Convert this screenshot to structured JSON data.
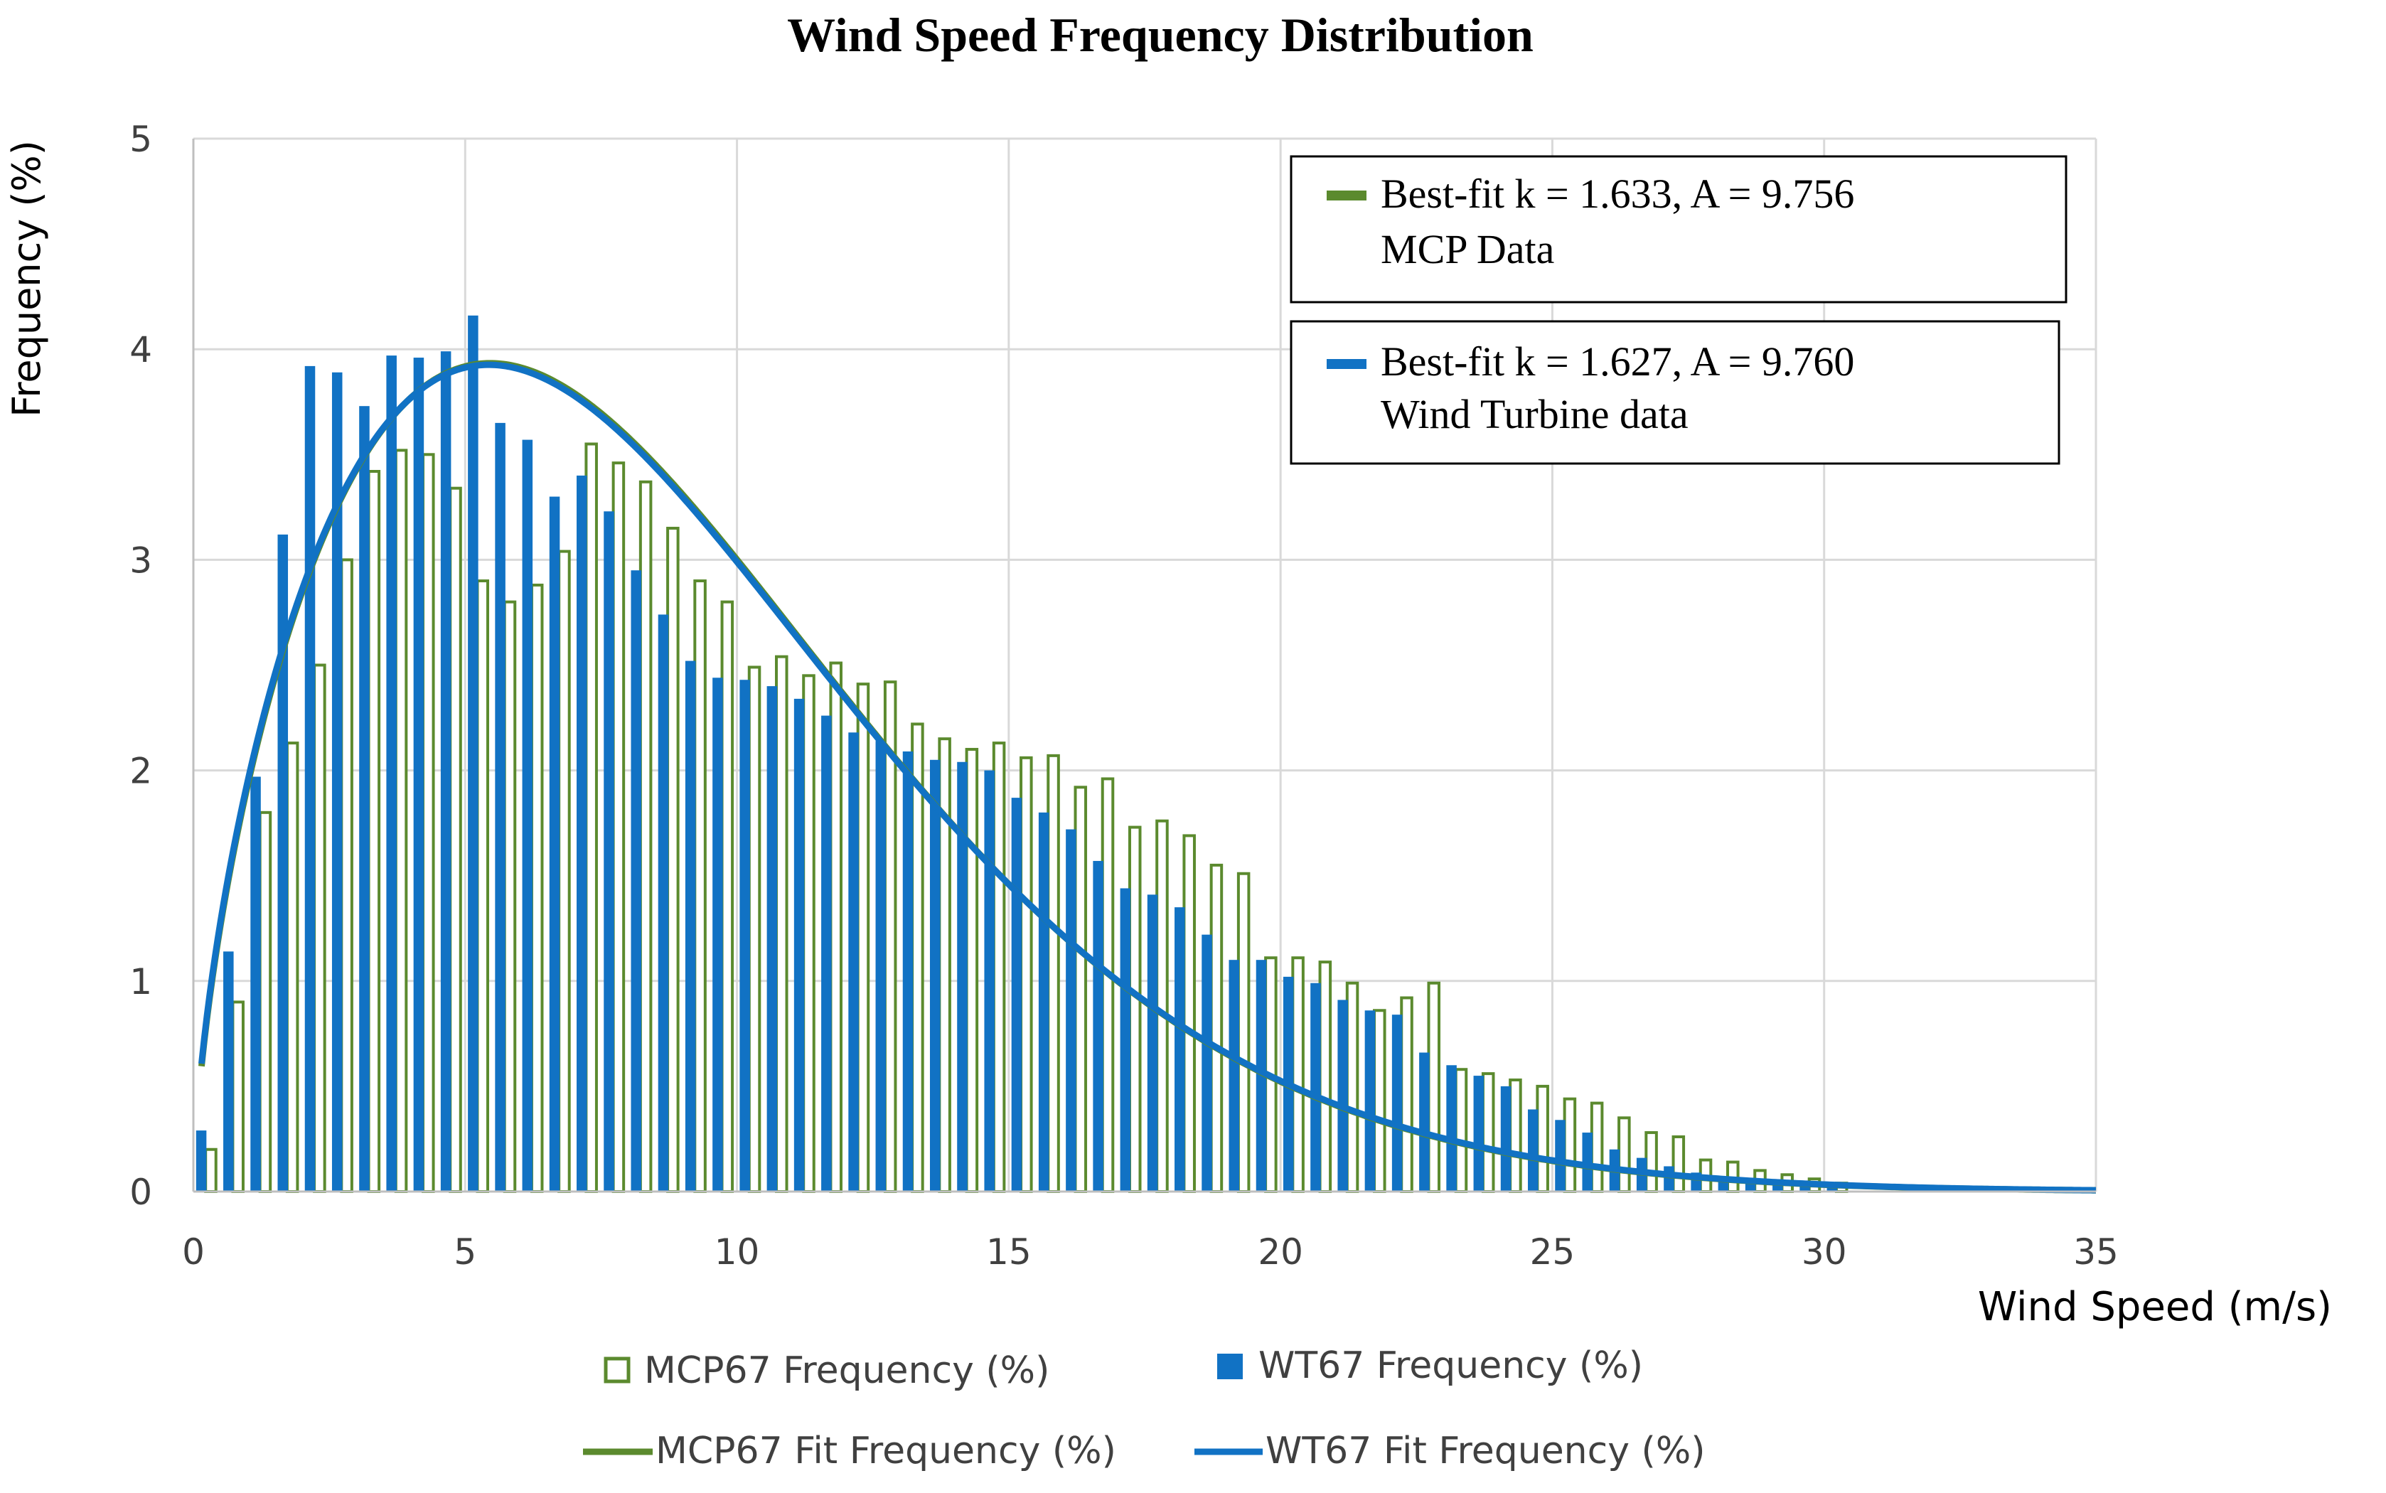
{
  "chart_data": {
    "type": "bar",
    "title": "Wind Speed Frequency Distribution",
    "xlabel": "Wind Speed  (m/s)",
    "ylabel": "Frequency  (%)",
    "xlim": [
      0,
      35
    ],
    "ylim": [
      0,
      5
    ],
    "x_ticks": [
      0,
      5,
      10,
      15,
      20,
      25,
      30,
      35
    ],
    "y_ticks": [
      0,
      1,
      2,
      3,
      4,
      5
    ],
    "grid": true,
    "bin_width": 0.5,
    "colors": {
      "mcp": "#5b8a2e",
      "wt": "#1172c4",
      "grid": "#d9d9d9",
      "axis": "#bfbfbf",
      "text": "#404040"
    },
    "series": [
      {
        "name": "MCP67 Frequency (%)",
        "style": "hollow-bar",
        "x": [
          0.25,
          0.75,
          1.25,
          1.75,
          2.25,
          2.75,
          3.25,
          3.75,
          4.25,
          4.75,
          5.25,
          5.75,
          6.25,
          6.75,
          7.25,
          7.75,
          8.25,
          8.75,
          9.25,
          9.75,
          10.25,
          10.75,
          11.25,
          11.75,
          12.25,
          12.75,
          13.25,
          13.75,
          14.25,
          14.75,
          15.25,
          15.75,
          16.25,
          16.75,
          17.25,
          17.75,
          18.25,
          18.75,
          19.25,
          19.75,
          20.25,
          20.75,
          21.25,
          21.75,
          22.25,
          22.75,
          23.25,
          23.75,
          24.25,
          24.75,
          25.25,
          25.75,
          26.25,
          26.75,
          27.25,
          27.75,
          28.25,
          28.75,
          29.25,
          29.75,
          30.25
        ],
        "values": [
          0.2,
          0.9,
          1.8,
          2.13,
          2.5,
          3.0,
          3.42,
          3.52,
          3.5,
          3.34,
          2.9,
          2.8,
          2.88,
          3.04,
          3.55,
          3.46,
          3.37,
          3.15,
          2.9,
          2.8,
          2.49,
          2.54,
          2.45,
          2.51,
          2.41,
          2.42,
          2.22,
          2.15,
          2.1,
          2.13,
          2.06,
          2.07,
          1.92,
          1.96,
          1.73,
          1.76,
          1.69,
          1.55,
          1.51,
          1.11,
          1.11,
          1.09,
          0.99,
          0.86,
          0.92,
          0.99,
          0.58,
          0.56,
          0.53,
          0.5,
          0.44,
          0.42,
          0.35,
          0.28,
          0.26,
          0.15,
          0.14,
          0.1,
          0.08,
          0.06,
          0.04
        ]
      },
      {
        "name": "WT67 Frequency (%)",
        "style": "solid-bar",
        "x": [
          0.25,
          0.75,
          1.25,
          1.75,
          2.25,
          2.75,
          3.25,
          3.75,
          4.25,
          4.75,
          5.25,
          5.75,
          6.25,
          6.75,
          7.25,
          7.75,
          8.25,
          8.75,
          9.25,
          9.75,
          10.25,
          10.75,
          11.25,
          11.75,
          12.25,
          12.75,
          13.25,
          13.75,
          14.25,
          14.75,
          15.25,
          15.75,
          16.25,
          16.75,
          17.25,
          17.75,
          18.25,
          18.75,
          19.25,
          19.75,
          20.25,
          20.75,
          21.25,
          21.75,
          22.25,
          22.75,
          23.25,
          23.75,
          24.25,
          24.75,
          25.25,
          25.75,
          26.25,
          26.75,
          27.25,
          27.75,
          28.25,
          28.75,
          29.25,
          29.75,
          30.25
        ],
        "values": [
          0.29,
          1.14,
          1.97,
          3.12,
          3.92,
          3.89,
          3.73,
          3.97,
          3.96,
          3.99,
          4.16,
          3.65,
          3.57,
          3.3,
          3.4,
          3.23,
          2.95,
          2.74,
          2.52,
          2.44,
          2.43,
          2.4,
          2.34,
          2.26,
          2.18,
          2.14,
          2.09,
          2.05,
          2.04,
          2.0,
          1.87,
          1.8,
          1.72,
          1.57,
          1.44,
          1.41,
          1.35,
          1.22,
          1.1,
          1.1,
          1.02,
          0.99,
          0.91,
          0.86,
          0.84,
          0.66,
          0.6,
          0.55,
          0.5,
          0.39,
          0.34,
          0.28,
          0.2,
          0.16,
          0.12,
          0.09,
          0.07,
          0.05,
          0.04,
          0.03,
          0.02
        ]
      },
      {
        "name": "MCP67 Fit Frequency (%)",
        "style": "line",
        "weibull": {
          "k": 1.633,
          "A": 9.756,
          "scale_percent": 50
        }
      },
      {
        "name": "WT67 Fit Frequency (%)",
        "style": "line",
        "weibull": {
          "k": 1.627,
          "A": 9.76,
          "scale_percent": 50
        }
      }
    ],
    "annotations": [
      {
        "line1": "Best-fit  k = 1.633, A = 9.756",
        "line2": "MCP Data",
        "series": "MCP67 Fit Frequency (%)"
      },
      {
        "line1": "Best-fit  k = 1.627, A = 9.760",
        "line2": "Wind Turbine data",
        "series": "WT67 Fit Frequency (%)"
      }
    ],
    "legend": {
      "position": "bottom",
      "items": [
        "MCP67 Frequency (%)",
        "WT67 Frequency (%)",
        "MCP67 Fit Frequency (%)",
        "WT67 Fit Frequency (%)"
      ]
    }
  }
}
